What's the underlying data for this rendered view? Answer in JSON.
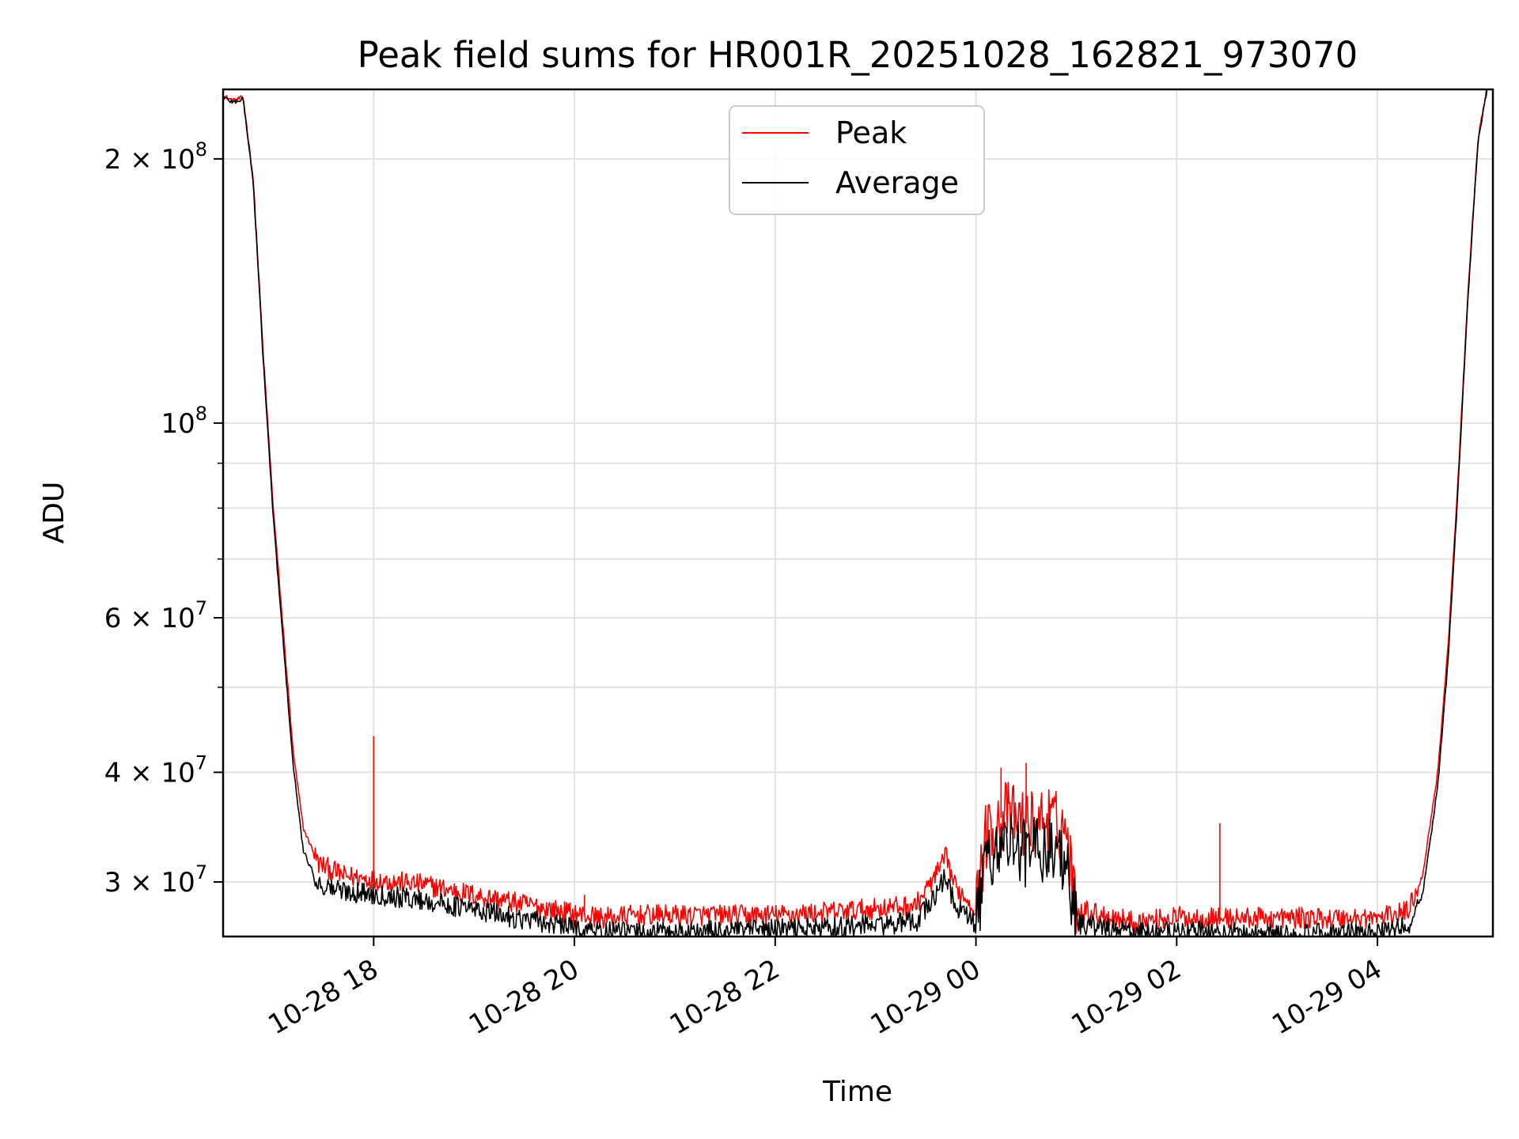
{
  "chart_data": {
    "type": "line",
    "title": "Peak field sums for HR001R_20251028_162821_973070",
    "xlabel": "Time",
    "ylabel": "ADU",
    "yscale": "log",
    "ylim": [
      26000000,
      240000000
    ],
    "xlim_hours": [
      16.5,
      29.15
    ],
    "x_ticks": [
      {
        "label": "10-28 18",
        "hour": 18
      },
      {
        "label": "10-28 20",
        "hour": 20
      },
      {
        "label": "10-28 22",
        "hour": 22
      },
      {
        "label": "10-29 00",
        "hour": 24
      },
      {
        "label": "10-29 02",
        "hour": 26
      },
      {
        "label": "10-29 04",
        "hour": 28
      }
    ],
    "y_ticks": [
      {
        "value": 30000000,
        "mantissa": "3",
        "exp": "7"
      },
      {
        "value": 40000000,
        "mantissa": "4",
        "exp": "7"
      },
      {
        "value": 60000000,
        "mantissa": "6",
        "exp": "7"
      },
      {
        "value": 100000000,
        "mantissa": "",
        "exp": "8"
      },
      {
        "value": 200000000,
        "mantissa": "2",
        "exp": "8"
      }
    ],
    "y_minor_ticks": [
      50000000,
      70000000,
      80000000,
      90000000
    ],
    "legend_position": "upper center",
    "series": [
      {
        "name": "Peak",
        "color": "#ff0000",
        "anchors": [
          {
            "x": 16.5,
            "y": 236000000
          },
          {
            "x": 16.6,
            "y": 233000000
          },
          {
            "x": 16.7,
            "y": 235000000
          },
          {
            "x": 16.8,
            "y": 190000000
          },
          {
            "x": 16.9,
            "y": 120000000
          },
          {
            "x": 17.0,
            "y": 80000000
          },
          {
            "x": 17.1,
            "y": 58000000
          },
          {
            "x": 17.2,
            "y": 42000000
          },
          {
            "x": 17.3,
            "y": 34500000
          },
          {
            "x": 17.45,
            "y": 31500000
          },
          {
            "x": 17.7,
            "y": 30500000
          },
          {
            "x": 18.0,
            "y": 30200000
          },
          {
            "x": 18.5,
            "y": 29800000
          },
          {
            "x": 19.0,
            "y": 29000000
          },
          {
            "x": 19.5,
            "y": 28300000
          },
          {
            "x": 20.0,
            "y": 27600000
          },
          {
            "x": 20.3,
            "y": 27300000
          },
          {
            "x": 20.6,
            "y": 27500000
          },
          {
            "x": 21.0,
            "y": 27500000
          },
          {
            "x": 21.5,
            "y": 27500000
          },
          {
            "x": 22.0,
            "y": 27500000
          },
          {
            "x": 22.5,
            "y": 27700000
          },
          {
            "x": 23.0,
            "y": 28000000
          },
          {
            "x": 23.4,
            "y": 28200000
          },
          {
            "x": 23.6,
            "y": 30500000
          },
          {
            "x": 23.7,
            "y": 32000000
          },
          {
            "x": 23.8,
            "y": 29500000
          },
          {
            "x": 23.9,
            "y": 28800000
          },
          {
            "x": 24.0,
            "y": 28000000
          },
          {
            "x": 24.1,
            "y": 34000000
          },
          {
            "x": 24.3,
            "y": 36000000
          },
          {
            "x": 24.5,
            "y": 35000000
          },
          {
            "x": 24.7,
            "y": 35500000
          },
          {
            "x": 24.9,
            "y": 34500000
          },
          {
            "x": 25.0,
            "y": 28000000
          },
          {
            "x": 25.3,
            "y": 27500000
          },
          {
            "x": 25.6,
            "y": 27000000
          },
          {
            "x": 26.0,
            "y": 27400000
          },
          {
            "x": 26.2,
            "y": 27300000
          },
          {
            "x": 26.5,
            "y": 27300000
          },
          {
            "x": 27.0,
            "y": 27300000
          },
          {
            "x": 27.5,
            "y": 27300000
          },
          {
            "x": 28.0,
            "y": 27300000
          },
          {
            "x": 28.3,
            "y": 27800000
          },
          {
            "x": 28.45,
            "y": 30500000
          },
          {
            "x": 28.6,
            "y": 40000000
          },
          {
            "x": 28.7,
            "y": 55000000
          },
          {
            "x": 28.8,
            "y": 85000000
          },
          {
            "x": 28.9,
            "y": 140000000
          },
          {
            "x": 29.0,
            "y": 210000000
          },
          {
            "x": 29.1,
            "y": 245000000
          }
        ]
      },
      {
        "name": "Average",
        "color": "#000000",
        "anchors": [
          {
            "x": 16.5,
            "y": 235000000
          },
          {
            "x": 16.6,
            "y": 232000000
          },
          {
            "x": 16.7,
            "y": 234000000
          },
          {
            "x": 16.8,
            "y": 188000000
          },
          {
            "x": 16.9,
            "y": 118000000
          },
          {
            "x": 17.0,
            "y": 78000000
          },
          {
            "x": 17.1,
            "y": 56000000
          },
          {
            "x": 17.2,
            "y": 40500000
          },
          {
            "x": 17.3,
            "y": 32500000
          },
          {
            "x": 17.45,
            "y": 29800000
          },
          {
            "x": 17.7,
            "y": 29300000
          },
          {
            "x": 18.0,
            "y": 29100000
          },
          {
            "x": 18.5,
            "y": 28600000
          },
          {
            "x": 19.0,
            "y": 27900000
          },
          {
            "x": 19.5,
            "y": 27200000
          },
          {
            "x": 20.0,
            "y": 26600000
          },
          {
            "x": 20.3,
            "y": 26300000
          },
          {
            "x": 20.6,
            "y": 26300000
          },
          {
            "x": 21.0,
            "y": 26300000
          },
          {
            "x": 21.5,
            "y": 26400000
          },
          {
            "x": 22.0,
            "y": 26500000
          },
          {
            "x": 22.5,
            "y": 26600000
          },
          {
            "x": 23.0,
            "y": 26800000
          },
          {
            "x": 23.4,
            "y": 27000000
          },
          {
            "x": 23.6,
            "y": 29000000
          },
          {
            "x": 23.7,
            "y": 30500000
          },
          {
            "x": 23.8,
            "y": 28000000
          },
          {
            "x": 23.9,
            "y": 27500000
          },
          {
            "x": 24.0,
            "y": 26800000
          },
          {
            "x": 24.1,
            "y": 32000000
          },
          {
            "x": 24.3,
            "y": 33500000
          },
          {
            "x": 24.5,
            "y": 32500000
          },
          {
            "x": 24.7,
            "y": 33000000
          },
          {
            "x": 24.9,
            "y": 32000000
          },
          {
            "x": 25.0,
            "y": 26900000
          },
          {
            "x": 25.3,
            "y": 26600000
          },
          {
            "x": 25.6,
            "y": 26300000
          },
          {
            "x": 26.0,
            "y": 26300000
          },
          {
            "x": 26.2,
            "y": 26400000
          },
          {
            "x": 26.5,
            "y": 26200000
          },
          {
            "x": 27.0,
            "y": 26200000
          },
          {
            "x": 27.5,
            "y": 26200000
          },
          {
            "x": 28.0,
            "y": 26200000
          },
          {
            "x": 28.3,
            "y": 26700000
          },
          {
            "x": 28.45,
            "y": 29000000
          },
          {
            "x": 28.6,
            "y": 38500000
          },
          {
            "x": 28.7,
            "y": 53000000
          },
          {
            "x": 28.8,
            "y": 83000000
          },
          {
            "x": 28.9,
            "y": 138000000
          },
          {
            "x": 29.0,
            "y": 208000000
          },
          {
            "x": 29.1,
            "y": 243000000
          }
        ]
      }
    ],
    "spikes": [
      {
        "series": "Peak",
        "x": 18.0,
        "y": 44000000
      },
      {
        "series": "Peak",
        "x": 26.43,
        "y": 35000000
      },
      {
        "series": "Peak",
        "x": 20.1,
        "y": 29000000
      },
      {
        "series": "Peak",
        "x": 24.25,
        "y": 40500000
      },
      {
        "series": "Peak",
        "x": 24.5,
        "y": 41000000
      }
    ]
  }
}
